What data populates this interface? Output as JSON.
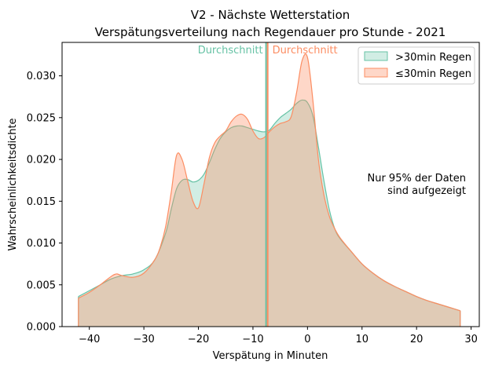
{
  "chart_data": {
    "type": "area",
    "title_line1": "V2 - Nächste Wetterstation",
    "title_line2": "Verspätungsverteilung nach Regendauer pro Stunde - 2021",
    "xlabel": "Verspätung in Minuten",
    "ylabel": "Wahrscheinlichkeitsdichte",
    "xlim": [
      -45,
      31.5
    ],
    "ylim": [
      0,
      0.034
    ],
    "xticks": [
      -40,
      -30,
      -20,
      -10,
      0,
      10,
      20,
      30
    ],
    "yticks": [
      0.0,
      0.005,
      0.01,
      0.015,
      0.02,
      0.025,
      0.03
    ],
    "ytick_labels": [
      "0.000",
      "0.005",
      "0.010",
      "0.015",
      "0.020",
      "0.025",
      "0.030"
    ],
    "grid": false,
    "legend_position": "top-right",
    "annotation": [
      "Nur 95% der Daten",
      "sind aufgezeigt"
    ],
    "mean_label": "Durchschnitt",
    "series": [
      {
        "name": ">30min Regen",
        "color": "#66c2a5",
        "fill": "rgba(102,194,165,0.3)",
        "mean": -7.6,
        "x": [
          -42,
          -40,
          -38,
          -36,
          -34,
          -32,
          -30,
          -28,
          -26,
          -25,
          -24,
          -23,
          -22,
          -21,
          -20,
          -19,
          -18,
          -17,
          -16,
          -15,
          -14,
          -13,
          -12,
          -11,
          -10,
          -9,
          -8,
          -7,
          -6,
          -5,
          -4,
          -3,
          -2,
          -1,
          0,
          1,
          2,
          3,
          4,
          5,
          6,
          8,
          10,
          12,
          14,
          16,
          18,
          20,
          22,
          24,
          26,
          28
        ],
        "y": [
          0.0036,
          0.0043,
          0.005,
          0.0057,
          0.0061,
          0.0063,
          0.0068,
          0.008,
          0.0112,
          0.014,
          0.0165,
          0.0175,
          0.0176,
          0.0173,
          0.0175,
          0.0182,
          0.0196,
          0.0212,
          0.0225,
          0.0233,
          0.0238,
          0.024,
          0.024,
          0.0238,
          0.0236,
          0.0234,
          0.0233,
          0.0235,
          0.0243,
          0.025,
          0.0255,
          0.026,
          0.0267,
          0.0271,
          0.0268,
          0.0252,
          0.0215,
          0.0175,
          0.014,
          0.0117,
          0.0105,
          0.009,
          0.0075,
          0.0064,
          0.0055,
          0.0048,
          0.0042,
          0.0036,
          0.0031,
          0.0027,
          0.0023,
          0.0019
        ]
      },
      {
        "name": "≤30min Regen",
        "color": "#fc8d62",
        "fill": "rgba(252,141,98,0.35)",
        "mean": -7.3,
        "x": [
          -42,
          -40,
          -38,
          -36,
          -35,
          -34,
          -32,
          -30,
          -28,
          -27,
          -26,
          -25,
          -24,
          -23,
          -22,
          -21,
          -20,
          -19,
          -18,
          -17,
          -16,
          -15,
          -14,
          -13,
          -12,
          -11,
          -10,
          -9,
          -8,
          -7,
          -6,
          -5,
          -4,
          -3,
          -2,
          -1,
          0,
          1,
          2,
          3,
          4,
          5,
          6,
          8,
          10,
          12,
          14,
          16,
          18,
          20,
          22,
          24,
          26,
          28
        ],
        "y": [
          0.0034,
          0.0041,
          0.005,
          0.006,
          0.0063,
          0.0061,
          0.0059,
          0.0064,
          0.008,
          0.0095,
          0.012,
          0.016,
          0.0205,
          0.02,
          0.0175,
          0.015,
          0.0142,
          0.017,
          0.0202,
          0.022,
          0.0228,
          0.0234,
          0.0245,
          0.0252,
          0.0254,
          0.0248,
          0.0234,
          0.0225,
          0.0226,
          0.0233,
          0.0239,
          0.0243,
          0.0245,
          0.0251,
          0.028,
          0.0318,
          0.0322,
          0.027,
          0.02,
          0.0158,
          0.0132,
          0.0117,
          0.0106,
          0.009,
          0.0075,
          0.0064,
          0.0055,
          0.0048,
          0.0042,
          0.0036,
          0.0031,
          0.0027,
          0.0023,
          0.0019
        ]
      }
    ]
  }
}
